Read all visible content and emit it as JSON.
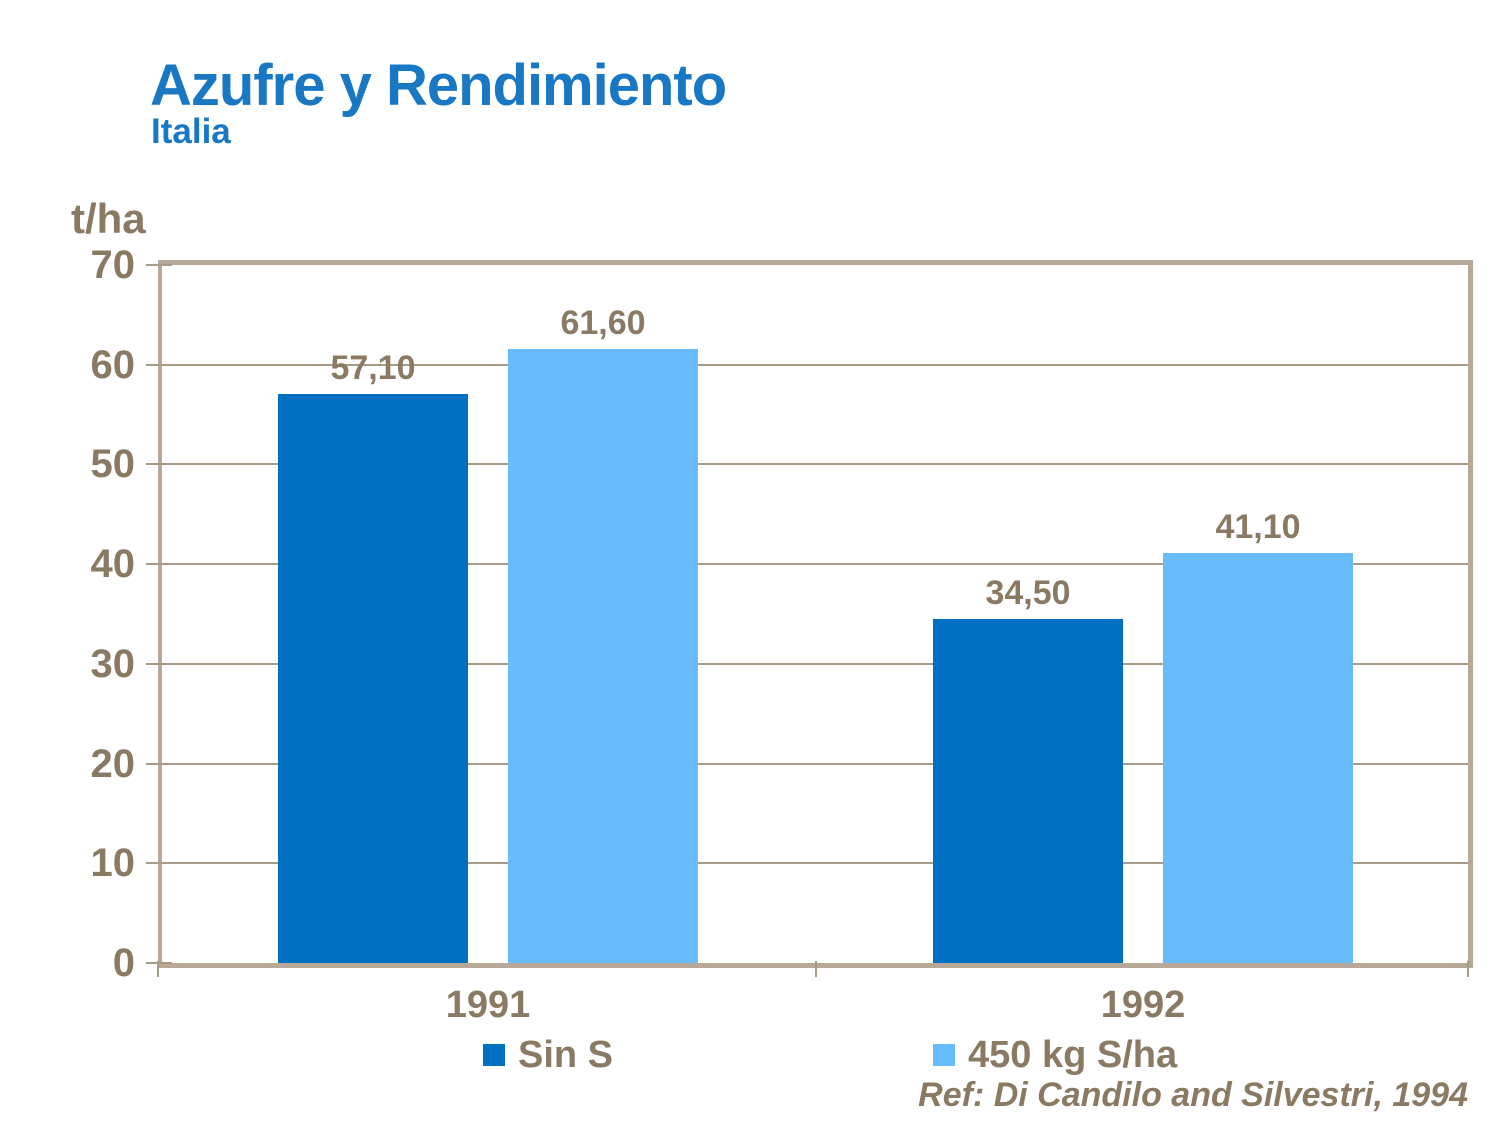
{
  "chart_data": {
    "type": "bar",
    "title": "Azufre y Rendimiento",
    "subtitle": "Italia",
    "ylabel": "t/ha",
    "xlabel": "",
    "ylim": [
      0,
      70
    ],
    "yticks": [
      0,
      10,
      20,
      30,
      40,
      50,
      60,
      70
    ],
    "grid": true,
    "legend_position": "bottom-center",
    "categories": [
      "1991",
      "1992"
    ],
    "series": [
      {
        "name": "Sin S",
        "color": "#0070C3",
        "values": [
          57.1,
          34.5
        ],
        "value_labels": [
          "57,10",
          "34,50"
        ]
      },
      {
        "name": "450 kg S/ha",
        "color": "#69BCFB",
        "values": [
          61.6,
          41.1
        ],
        "value_labels": [
          "61,60",
          "41,10"
        ]
      }
    ],
    "annotation": "Ref: Di Candilo and Silvestri, 1994"
  },
  "colors": {
    "title_blue": "#1878C4",
    "text_brown": "#8A7A64",
    "axis_tan": "#B7A897",
    "gridline_tan": "#A79A86"
  }
}
